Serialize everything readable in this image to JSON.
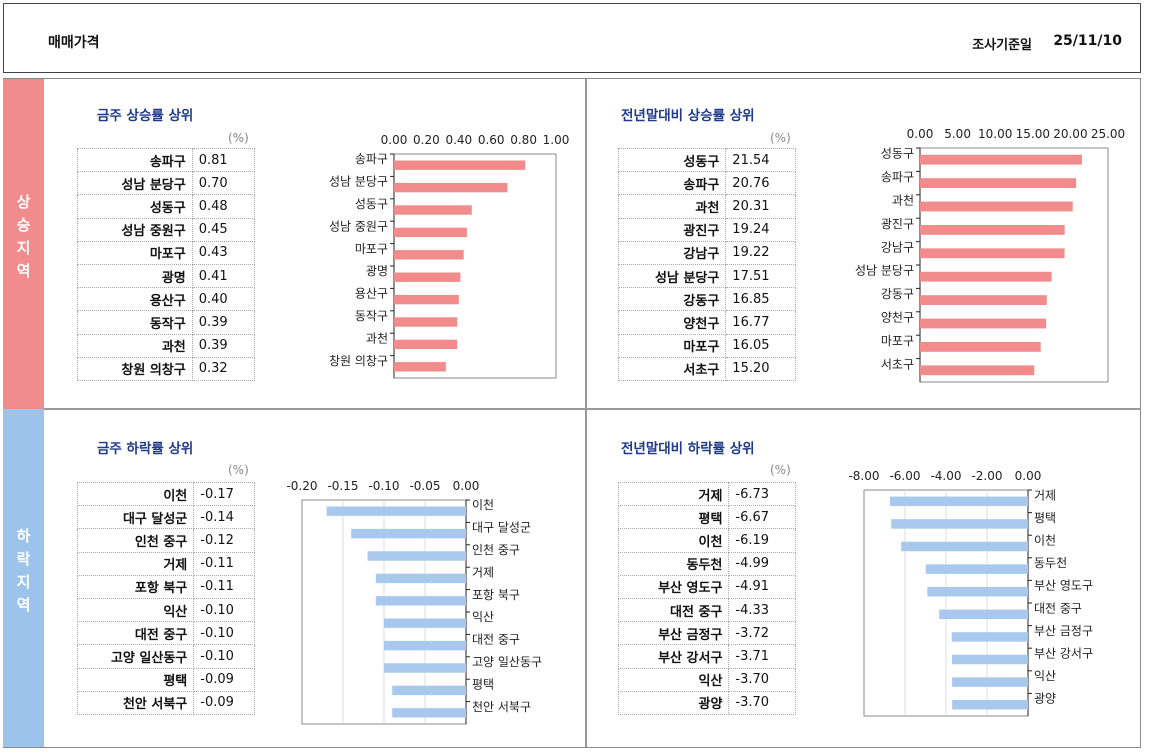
{
  "header": {
    "title": "매매가격",
    "date_label": "조사기준일",
    "date_value": "25/11/10"
  },
  "side": {
    "up": [
      "상",
      "승",
      "지",
      "역"
    ],
    "down": [
      "하",
      "락",
      "지",
      "역"
    ]
  },
  "unit": "(%)",
  "colors": {
    "up_bar": "#f28b8b",
    "down_bar": "#a8c8ee",
    "up_side": "#f28b8b",
    "down_side": "#9cc3ea",
    "title": "#1f3a8a"
  },
  "chart_data": [
    {
      "type": "bar",
      "title": "금주 상승률 상위",
      "orientation": "horizontal",
      "categories": [
        "송파구",
        "성남 분당구",
        "성동구",
        "성남 중원구",
        "마포구",
        "광명",
        "용산구",
        "동작구",
        "과천",
        "창원 의창구"
      ],
      "values": [
        0.81,
        0.7,
        0.48,
        0.45,
        0.43,
        0.41,
        0.4,
        0.39,
        0.39,
        0.32
      ],
      "value_labels": [
        "0.81",
        "0.70",
        "0.48",
        "0.45",
        "0.43",
        "0.41",
        "0.40",
        "0.39",
        "0.39",
        "0.32"
      ],
      "xlim": [
        0,
        1.0
      ],
      "ticks": [
        "0.00",
        "0.20",
        "0.40",
        "0.60",
        "0.80",
        "1.00"
      ],
      "tick_values": [
        0,
        0.2,
        0.4,
        0.6,
        0.8,
        1.0
      ],
      "grid": false
    },
    {
      "type": "bar",
      "title": "전년말대비 상승률 상위",
      "orientation": "horizontal",
      "categories": [
        "성동구",
        "송파구",
        "과천",
        "광진구",
        "강남구",
        "성남 분당구",
        "강동구",
        "양천구",
        "마포구",
        "서초구"
      ],
      "values": [
        21.54,
        20.76,
        20.31,
        19.24,
        19.22,
        17.51,
        16.85,
        16.77,
        16.05,
        15.2
      ],
      "value_labels": [
        "21.54",
        "20.76",
        "20.31",
        "19.24",
        "19.22",
        "17.51",
        "16.85",
        "16.77",
        "16.05",
        "15.20"
      ],
      "xlim": [
        0,
        25
      ],
      "ticks": [
        "0.00",
        "5.00",
        "10.00",
        "15.00",
        "20.00",
        "25.00"
      ],
      "tick_values": [
        0,
        5,
        10,
        15,
        20,
        25
      ],
      "grid": false
    },
    {
      "type": "bar",
      "title": "금주 하락률 상위",
      "orientation": "horizontal",
      "categories": [
        "이천",
        "대구 달성군",
        "인천 중구",
        "거제",
        "포항 북구",
        "익산",
        "대전 중구",
        "고양 일산동구",
        "평택",
        "천안 서북구"
      ],
      "values": [
        -0.17,
        -0.14,
        -0.12,
        -0.11,
        -0.11,
        -0.1,
        -0.1,
        -0.1,
        -0.09,
        -0.09
      ],
      "value_labels": [
        "-0.17",
        "-0.14",
        "-0.12",
        "-0.11",
        "-0.11",
        "-0.10",
        "-0.10",
        "-0.10",
        "-0.09",
        "-0.09"
      ],
      "xlim": [
        -0.2,
        0
      ],
      "ticks": [
        "-0.20",
        "-0.15",
        "-0.10",
        "-0.05",
        "0.00"
      ],
      "tick_values": [
        -0.2,
        -0.15,
        -0.1,
        -0.05,
        0
      ],
      "grid": true
    },
    {
      "type": "bar",
      "title": "전년말대비 하락률 상위",
      "orientation": "horizontal",
      "categories": [
        "거제",
        "평택",
        "이천",
        "동두천",
        "부산 영도구",
        "대전 중구",
        "부산 금정구",
        "부산 강서구",
        "익산",
        "광양"
      ],
      "values": [
        -6.73,
        -6.67,
        -6.19,
        -4.99,
        -4.91,
        -4.33,
        -3.72,
        -3.71,
        -3.7,
        -3.7
      ],
      "value_labels": [
        "-6.73",
        "-6.67",
        "-6.19",
        "-4.99",
        "-4.91",
        "-4.33",
        "-3.72",
        "-3.71",
        "-3.70",
        "-3.70"
      ],
      "xlim": [
        -8,
        0
      ],
      "ticks": [
        "-8.00",
        "-6.00",
        "-4.00",
        "-2.00",
        "0.00"
      ],
      "tick_values": [
        -8,
        -6,
        -4,
        -2,
        0
      ],
      "grid": true
    }
  ]
}
